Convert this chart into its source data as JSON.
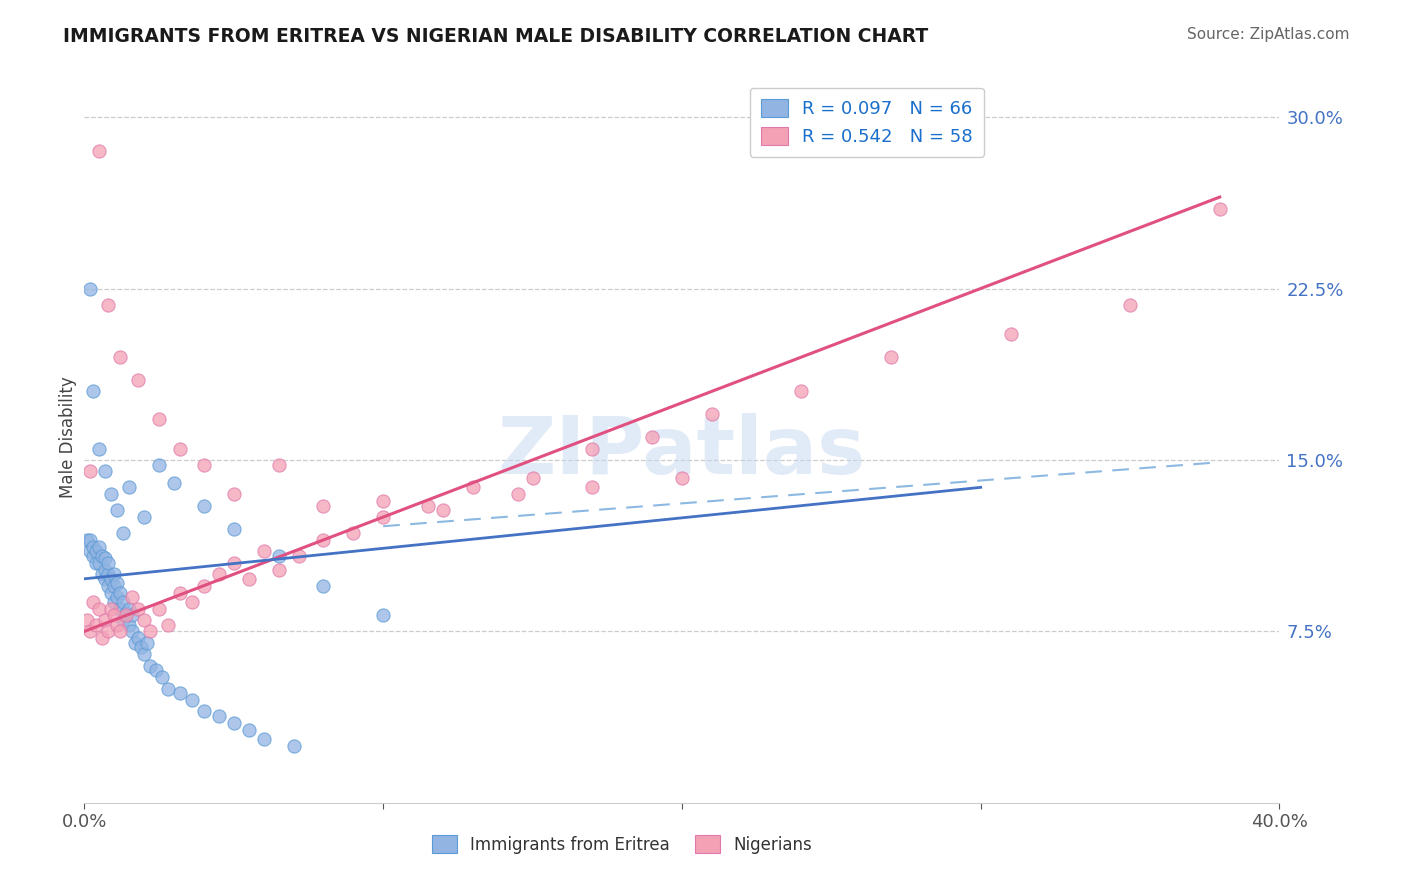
{
  "title": "IMMIGRANTS FROM ERITREA VS NIGERIAN MALE DISABILITY CORRELATION CHART",
  "source": "Source: ZipAtlas.com",
  "ylabel": "Male Disability",
  "xlim": [
    0.0,
    0.4
  ],
  "ylim": [
    0.0,
    0.32
  ],
  "ytick_positions": [
    0.075,
    0.15,
    0.225,
    0.3
  ],
  "ytick_labels": [
    "7.5%",
    "15.0%",
    "22.5%",
    "30.0%"
  ],
  "legend_label1": "Immigrants from Eritrea",
  "legend_label2": "Nigerians",
  "color_eritrea": "#92b4e3",
  "color_eritrea_edge": "#5b9bd5",
  "color_nigeria": "#f4a0b5",
  "color_nigeria_edge": "#e07aaa",
  "color_eritrea_line": "#4472c4",
  "color_nigeria_line": "#e05080",
  "watermark": "ZIPatlas",
  "eritrea_scatter_x": [
    0.001,
    0.002,
    0.002,
    0.003,
    0.003,
    0.004,
    0.004,
    0.005,
    0.005,
    0.006,
    0.006,
    0.007,
    0.007,
    0.007,
    0.008,
    0.008,
    0.008,
    0.009,
    0.009,
    0.01,
    0.01,
    0.01,
    0.011,
    0.011,
    0.012,
    0.012,
    0.013,
    0.013,
    0.014,
    0.015,
    0.015,
    0.016,
    0.016,
    0.017,
    0.018,
    0.019,
    0.02,
    0.021,
    0.022,
    0.024,
    0.026,
    0.028,
    0.032,
    0.036,
    0.04,
    0.045,
    0.05,
    0.055,
    0.06,
    0.07,
    0.002,
    0.003,
    0.005,
    0.007,
    0.009,
    0.011,
    0.013,
    0.015,
    0.02,
    0.025,
    0.03,
    0.04,
    0.05,
    0.065,
    0.08,
    0.1
  ],
  "eritrea_scatter_y": [
    0.115,
    0.11,
    0.115,
    0.108,
    0.112,
    0.105,
    0.11,
    0.105,
    0.112,
    0.1,
    0.108,
    0.098,
    0.102,
    0.107,
    0.095,
    0.1,
    0.105,
    0.092,
    0.098,
    0.088,
    0.095,
    0.1,
    0.09,
    0.096,
    0.085,
    0.092,
    0.08,
    0.088,
    0.083,
    0.078,
    0.085,
    0.075,
    0.082,
    0.07,
    0.072,
    0.068,
    0.065,
    0.07,
    0.06,
    0.058,
    0.055,
    0.05,
    0.048,
    0.045,
    0.04,
    0.038,
    0.035,
    0.032,
    0.028,
    0.025,
    0.225,
    0.18,
    0.155,
    0.145,
    0.135,
    0.128,
    0.118,
    0.138,
    0.125,
    0.148,
    0.14,
    0.13,
    0.12,
    0.108,
    0.095,
    0.082
  ],
  "nigeria_scatter_x": [
    0.001,
    0.002,
    0.003,
    0.004,
    0.005,
    0.006,
    0.007,
    0.008,
    0.009,
    0.01,
    0.011,
    0.012,
    0.014,
    0.016,
    0.018,
    0.02,
    0.022,
    0.025,
    0.028,
    0.032,
    0.036,
    0.04,
    0.045,
    0.05,
    0.055,
    0.06,
    0.065,
    0.072,
    0.08,
    0.09,
    0.1,
    0.115,
    0.13,
    0.15,
    0.17,
    0.19,
    0.21,
    0.24,
    0.27,
    0.31,
    0.35,
    0.38,
    0.002,
    0.005,
    0.008,
    0.012,
    0.018,
    0.025,
    0.032,
    0.04,
    0.05,
    0.065,
    0.08,
    0.1,
    0.12,
    0.145,
    0.17,
    0.2
  ],
  "nigeria_scatter_y": [
    0.08,
    0.075,
    0.088,
    0.078,
    0.085,
    0.072,
    0.08,
    0.075,
    0.085,
    0.082,
    0.078,
    0.075,
    0.082,
    0.09,
    0.085,
    0.08,
    0.075,
    0.085,
    0.078,
    0.092,
    0.088,
    0.095,
    0.1,
    0.105,
    0.098,
    0.11,
    0.102,
    0.108,
    0.115,
    0.118,
    0.125,
    0.13,
    0.138,
    0.142,
    0.155,
    0.16,
    0.17,
    0.18,
    0.195,
    0.205,
    0.218,
    0.26,
    0.145,
    0.285,
    0.218,
    0.195,
    0.185,
    0.168,
    0.155,
    0.148,
    0.135,
    0.148,
    0.13,
    0.132,
    0.128,
    0.135,
    0.138,
    0.142
  ],
  "eritrea_line_x": [
    0.0,
    0.3
  ],
  "eritrea_line_y": [
    0.098,
    0.138
  ],
  "nigeria_line_x": [
    0.0,
    0.38
  ],
  "nigeria_line_y": [
    0.075,
    0.265
  ]
}
